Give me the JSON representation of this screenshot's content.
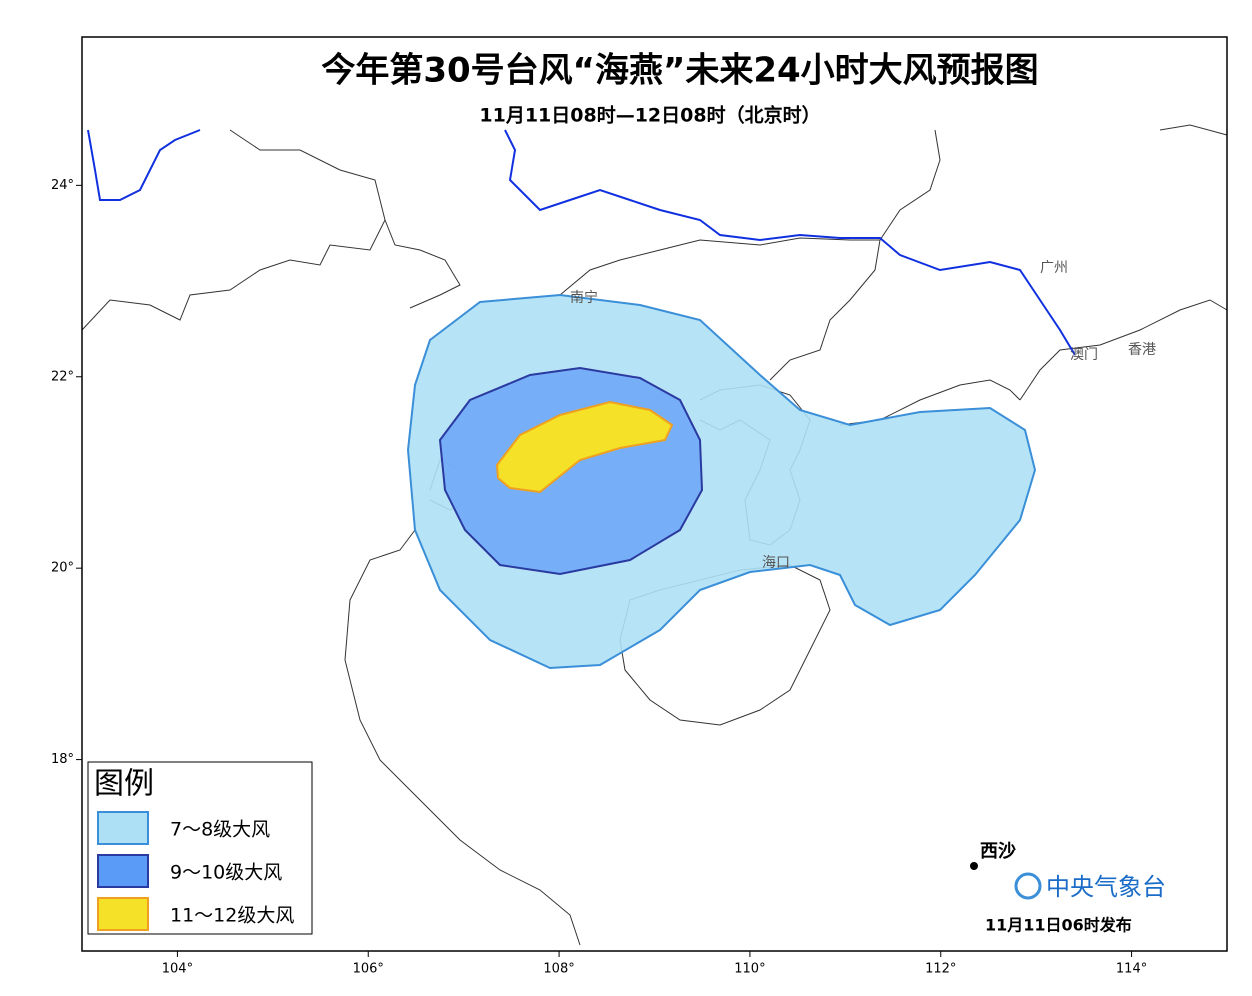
{
  "header": {
    "title": "今年第30号台风“海燕”未来24小时大风预报图",
    "subtitle": "11月11日08时—12日08时（北京时）"
  },
  "map": {
    "xlim": [
      103,
      115
    ],
    "ylim": [
      16,
      25.55
    ],
    "xticks": [
      {
        "value": 104,
        "label": "104°"
      },
      {
        "value": 106,
        "label": "106°"
      },
      {
        "value": 108,
        "label": "108°"
      },
      {
        "value": 110,
        "label": "110°"
      },
      {
        "value": 112,
        "label": "112°"
      },
      {
        "value": 114,
        "label": "114°"
      }
    ],
    "yticks": [
      {
        "value": 18,
        "label": "18°"
      },
      {
        "value": 20,
        "label": "20°"
      },
      {
        "value": 22,
        "label": "22°"
      },
      {
        "value": 24,
        "label": "24°"
      }
    ],
    "places": [
      "南宁",
      "广州",
      "澳门",
      "香港",
      "海口",
      "西沙"
    ]
  },
  "legend": {
    "title": "图例",
    "items": [
      "7～8级大风",
      "9～10级大风",
      "11～12级大风"
    ]
  },
  "footer": {
    "agency": "中央气象台",
    "issued": "11月11日06时发布"
  }
}
